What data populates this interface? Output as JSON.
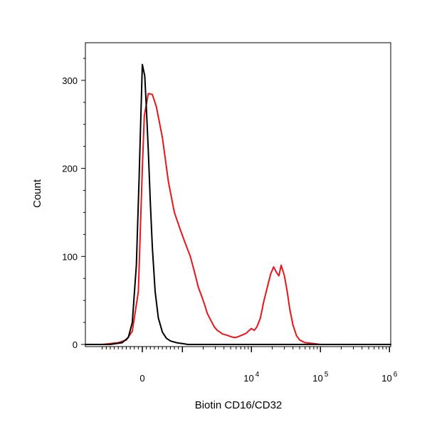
{
  "chart_data": {
    "type": "line",
    "title": "",
    "xlabel": "Biotin  CD16/CD32",
    "ylabel": "Count",
    "x_scale": "biexponential",
    "xlim": [
      -2000,
      2000000
    ],
    "ylim": [
      0,
      350
    ],
    "x_ticks": [
      {
        "value": 0,
        "base": "0",
        "exp": ""
      },
      {
        "value": 10000,
        "base": "10",
        "exp": "4"
      },
      {
        "value": 100000,
        "base": "10",
        "exp": "5"
      },
      {
        "value": 1000000,
        "base": "10",
        "exp": "6"
      }
    ],
    "y_ticks": [
      {
        "value": 0,
        "label": "0"
      },
      {
        "value": 100,
        "label": "100"
      },
      {
        "value": 200,
        "label": "200"
      },
      {
        "value": 300,
        "label": "300"
      }
    ],
    "grid": false,
    "legend": "none",
    "series": [
      {
        "color": "#e8141c",
        "x": [
          -2000,
          -1000,
          -600,
          -400,
          -250,
          -100,
          0,
          50,
          150,
          250,
          350,
          500,
          650,
          800,
          950,
          1100,
          1300,
          1500,
          1700,
          1900,
          2100,
          2300,
          2600,
          2900,
          3200,
          3500,
          3800,
          4200,
          4600,
          5000,
          5500,
          6000,
          6500,
          7000,
          7500,
          8000,
          8500,
          9000,
          10000,
          11000,
          12000,
          13500,
          15000,
          17000,
          19000,
          21000,
          23000,
          25000,
          27000,
          30000,
          33000,
          36000,
          40000,
          45000,
          50000,
          60000,
          80000,
          100000,
          1000000,
          2000000
        ],
        "y": [
          0,
          0,
          2,
          5,
          15,
          60,
          200,
          260,
          285,
          284,
          270,
          235,
          185,
          150,
          130,
          115,
          100,
          82,
          65,
          55,
          45,
          35,
          27,
          20,
          16,
          14,
          12,
          11,
          10,
          9,
          8,
          8,
          9,
          10,
          11,
          12,
          13,
          15,
          18,
          16,
          20,
          30,
          48,
          65,
          80,
          88,
          82,
          78,
          90,
          78,
          60,
          40,
          22,
          10,
          5,
          2,
          1,
          0,
          0,
          0
        ]
      },
      {
        "color": "#000000",
        "x": [
          -2000,
          -800,
          -500,
          -350,
          -250,
          -150,
          -80,
          0,
          60,
          100,
          150,
          200,
          250,
          320,
          400,
          500,
          600,
          700,
          850,
          1000,
          1200,
          1500,
          2000,
          5000,
          2000000
        ],
        "y": [
          0,
          0,
          2,
          8,
          25,
          90,
          190,
          318,
          305,
          270,
          220,
          160,
          110,
          60,
          30,
          14,
          7,
          4,
          2,
          1,
          0,
          0,
          0,
          0,
          0
        ]
      }
    ]
  }
}
